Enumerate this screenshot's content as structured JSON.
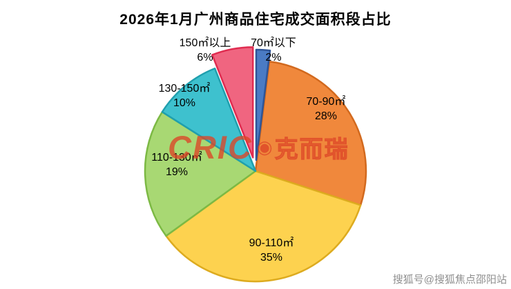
{
  "title": "2026年1月广州商品住宅成交面积段占比",
  "watermark": {
    "brand": "CRIC",
    "mark": "◉",
    "brand_suffix": "克而瑞"
  },
  "footer": {
    "credit": "搜狐号@搜狐焦点邵阳站"
  },
  "chart_data": {
    "type": "pie",
    "title": "2026年1月广州商品住宅成交面积段占比",
    "start_angle_deg": 0,
    "clockwise": true,
    "legend_position": "none",
    "slices": [
      {
        "label": "70㎡以下",
        "value_pct": 2,
        "pct_label": "2%",
        "color": "#4a7bc4",
        "stroke": "#2f5597",
        "explode": 16
      },
      {
        "label": "70-90㎡",
        "value_pct": 28,
        "pct_label": "28%",
        "color": "#f0883c",
        "stroke": "#d2691e",
        "explode": 0
      },
      {
        "label": "90-110㎡",
        "value_pct": 35,
        "pct_label": "35%",
        "color": "#fdd24f",
        "stroke": "#ddab1f",
        "explode": 0
      },
      {
        "label": "110-130㎡",
        "value_pct": 19,
        "pct_label": "19%",
        "color": "#a8d873",
        "stroke": "#7cb944",
        "explode": 0
      },
      {
        "label": "130-150㎡",
        "value_pct": 10,
        "pct_label": "10%",
        "color": "#3ec1ce",
        "stroke": "#1f9fae",
        "explode": 0
      },
      {
        "label": "150㎡以上",
        "value_pct": 6,
        "pct_label": "6%",
        "color": "#f06580",
        "stroke": "#e02c50",
        "explode": 20
      }
    ]
  }
}
